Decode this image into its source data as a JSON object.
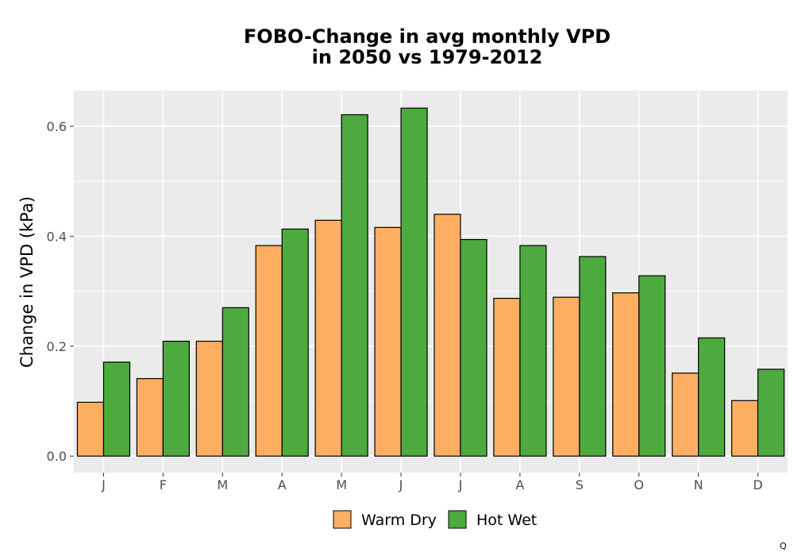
{
  "chart_data": {
    "type": "bar",
    "title": [
      "FOBO-Change in avg monthly VPD",
      "in 2050 vs 1979-2012"
    ],
    "xlabel": "",
    "ylabel": "Change in VPD (kPa)",
    "categories": [
      "J",
      "F",
      "M",
      "A",
      "M",
      "J",
      "J",
      "A",
      "S",
      "O",
      "N",
      "D"
    ],
    "ylim": [
      -0.03,
      0.665
    ],
    "yticks": [
      0.0,
      0.2,
      0.4,
      0.6
    ],
    "ytick_labels": [
      "0.0",
      "0.2",
      "0.4",
      "0.6"
    ],
    "grid": true,
    "legend_position": "bottom",
    "series": [
      {
        "name": "Warm Dry",
        "color": "#FDAE61",
        "values": [
          0.098,
          0.141,
          0.209,
          0.383,
          0.429,
          0.416,
          0.44,
          0.287,
          0.289,
          0.297,
          0.151,
          0.101
        ]
      },
      {
        "name": "Hot Wet",
        "color": "#4DAA3F",
        "values": [
          0.171,
          0.209,
          0.27,
          0.413,
          0.621,
          0.633,
          0.394,
          0.383,
          0.363,
          0.328,
          0.215,
          0.158
        ]
      }
    ]
  },
  "corner_mark": "Q"
}
